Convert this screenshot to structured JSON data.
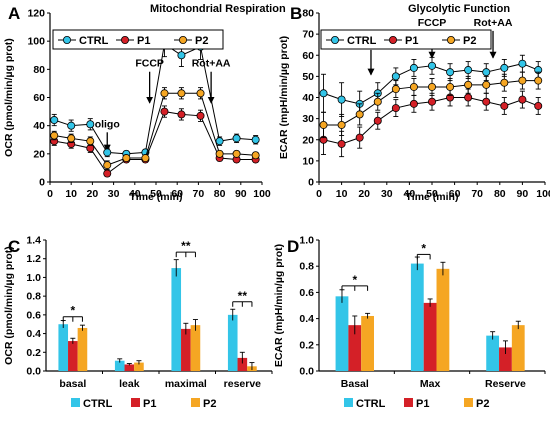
{
  "colors": {
    "CTRL": "#33C5E8",
    "P1": "#D42027",
    "P2": "#F5A623"
  },
  "chart_data": [
    {
      "letter": "A",
      "type": "line",
      "title": "Mitochondrial Respiration",
      "xlabel": "Time (min)",
      "ylabel": "OCR (pmol/min/µg prot)",
      "xlim": [
        0,
        100
      ],
      "ylim": [
        0,
        120
      ],
      "xticks": [
        0,
        10,
        20,
        30,
        40,
        50,
        60,
        70,
        80,
        90,
        100
      ],
      "yticks": [
        0,
        20,
        40,
        60,
        80,
        100,
        120
      ],
      "legend": [
        "CTRL",
        "P1",
        "P2"
      ],
      "x": [
        2,
        10,
        19,
        27,
        36,
        45,
        54,
        62,
        71,
        80,
        88,
        97
      ],
      "series": [
        {
          "name": "CTRL",
          "values": [
            44,
            40,
            41,
            21,
            20,
            21,
            98,
            90,
            96,
            29,
            31,
            30
          ],
          "errors": [
            4,
            4,
            4,
            3,
            2,
            2,
            9,
            8,
            9,
            3,
            3,
            3
          ]
        },
        {
          "name": "P1",
          "values": [
            29,
            27,
            24,
            6,
            16,
            16,
            50,
            48,
            47,
            17,
            16,
            16
          ],
          "errors": [
            3,
            3,
            3,
            2,
            2,
            2,
            4,
            4,
            4,
            2,
            2,
            2
          ]
        },
        {
          "name": "P2",
          "values": [
            33,
            31,
            29,
            12,
            17,
            17,
            63,
            63,
            63,
            20,
            20,
            19
          ],
          "errors": [
            3,
            3,
            3,
            3,
            2,
            2,
            4,
            4,
            4,
            2,
            2,
            2
          ]
        }
      ],
      "annotations": [
        {
          "text": "oligo",
          "x": 27,
          "arrow_y": 18,
          "label_y": 36
        },
        {
          "text": "FCCP",
          "x": 47,
          "arrow_y": 52,
          "label_y": 79
        },
        {
          "text": "Rot+AA",
          "x": 76,
          "arrow_y": 52,
          "label_y": 79
        }
      ]
    },
    {
      "letter": "B",
      "type": "line",
      "title": "Glycolytic Function",
      "xlabel": "Time (min)",
      "ylabel": "ECAR (mpH/min/µg prot)",
      "xlim": [
        0,
        100
      ],
      "ylim": [
        0,
        80
      ],
      "xticks": [
        0,
        10,
        20,
        30,
        40,
        50,
        60,
        70,
        80,
        90,
        100
      ],
      "yticks": [
        0,
        10,
        20,
        30,
        40,
        50,
        60,
        70,
        80
      ],
      "legend": [
        "CTRL",
        "P1",
        "P2"
      ],
      "x": [
        2,
        10,
        18,
        26,
        34,
        42,
        50,
        58,
        66,
        74,
        82,
        90,
        97
      ],
      "series": [
        {
          "name": "CTRL",
          "values": [
            42,
            39,
            37,
            42,
            50,
            54,
            55,
            52,
            53,
            52,
            54,
            56,
            53
          ],
          "errors": [
            9,
            8,
            6,
            5,
            4,
            4,
            4,
            4,
            4,
            4,
            4,
            4,
            4
          ]
        },
        {
          "name": "P1",
          "values": [
            20,
            18,
            21,
            29,
            35,
            37,
            38,
            40,
            40,
            38,
            36,
            39,
            36
          ],
          "errors": [
            7,
            6,
            5,
            4,
            4,
            4,
            4,
            4,
            4,
            4,
            4,
            4,
            4
          ]
        },
        {
          "name": "P2",
          "values": [
            27,
            27,
            32,
            38,
            44,
            45,
            45,
            45,
            46,
            46,
            47,
            48,
            48
          ],
          "errors": [
            6,
            5,
            5,
            4,
            4,
            4,
            4,
            4,
            4,
            4,
            4,
            4,
            4
          ]
        }
      ],
      "annotations": [
        {
          "text": "oligo",
          "x": 23,
          "arrow_y": 48,
          "label_y": 63
        },
        {
          "text": "FCCP",
          "x": 50,
          "arrow_y": 56,
          "label_y": 72
        },
        {
          "text": "Rot+AA",
          "x": 77,
          "arrow_y": 56,
          "label_y": 72
        }
      ]
    },
    {
      "letter": "C",
      "type": "bar",
      "ylabel": "OCR (pmol/min/µg prot)",
      "ylim": [
        0,
        1.4
      ],
      "yticks": [
        "0.0",
        "0.2",
        "0.4",
        "0.6",
        "0.8",
        "1.0",
        "1.2",
        "1.4"
      ],
      "categories": [
        "basal",
        "leak",
        "maximal",
        "reserve"
      ],
      "series": [
        {
          "name": "CTRL",
          "values": [
            0.5,
            0.11,
            1.1,
            0.6
          ],
          "errors": [
            0.04,
            0.02,
            0.09,
            0.06
          ]
        },
        {
          "name": "P1",
          "values": [
            0.32,
            0.07,
            0.45,
            0.14
          ],
          "errors": [
            0.03,
            0.01,
            0.06,
            0.06
          ]
        },
        {
          "name": "P2",
          "values": [
            0.46,
            0.09,
            0.49,
            0.05
          ],
          "errors": [
            0.03,
            0.02,
            0.06,
            0.04
          ]
        }
      ],
      "significance": [
        {
          "category": 0,
          "label": "*",
          "y": 0.58,
          "from": 0,
          "to": [
            1,
            2
          ]
        },
        {
          "category": 2,
          "label": "**",
          "y": 1.27,
          "from": 0,
          "to": [
            1,
            2
          ]
        },
        {
          "category": 3,
          "label": "**",
          "y": 0.74,
          "from": 0,
          "to": [
            1,
            2
          ]
        }
      ],
      "legend": [
        "CTRL",
        "P1",
        "P2"
      ]
    },
    {
      "letter": "D",
      "type": "bar",
      "ylabel": "ECAR (mpH/min/µg prot)",
      "ylim": [
        0,
        1.0
      ],
      "yticks": [
        "0.0",
        "0.2",
        "0.4",
        "0.6",
        "0.8",
        "1.0"
      ],
      "categories": [
        "Basal",
        "Max",
        "Reserve"
      ],
      "series": [
        {
          "name": "CTRL",
          "values": [
            0.57,
            0.82,
            0.27
          ],
          "errors": [
            0.05,
            0.05,
            0.03
          ]
        },
        {
          "name": "P1",
          "values": [
            0.35,
            0.52,
            0.18
          ],
          "errors": [
            0.07,
            0.03,
            0.05
          ]
        },
        {
          "name": "P2",
          "values": [
            0.42,
            0.78,
            0.35
          ],
          "errors": [
            0.02,
            0.05,
            0.03
          ]
        }
      ],
      "significance": [
        {
          "category": 0,
          "label": "*",
          "y": 0.65,
          "from": 0,
          "to": [
            1,
            2
          ]
        },
        {
          "category": 1,
          "label": "*",
          "y": 0.89,
          "from": 0,
          "to": [
            1
          ]
        }
      ],
      "legend": [
        "CTRL",
        "P1",
        "P2"
      ]
    }
  ]
}
